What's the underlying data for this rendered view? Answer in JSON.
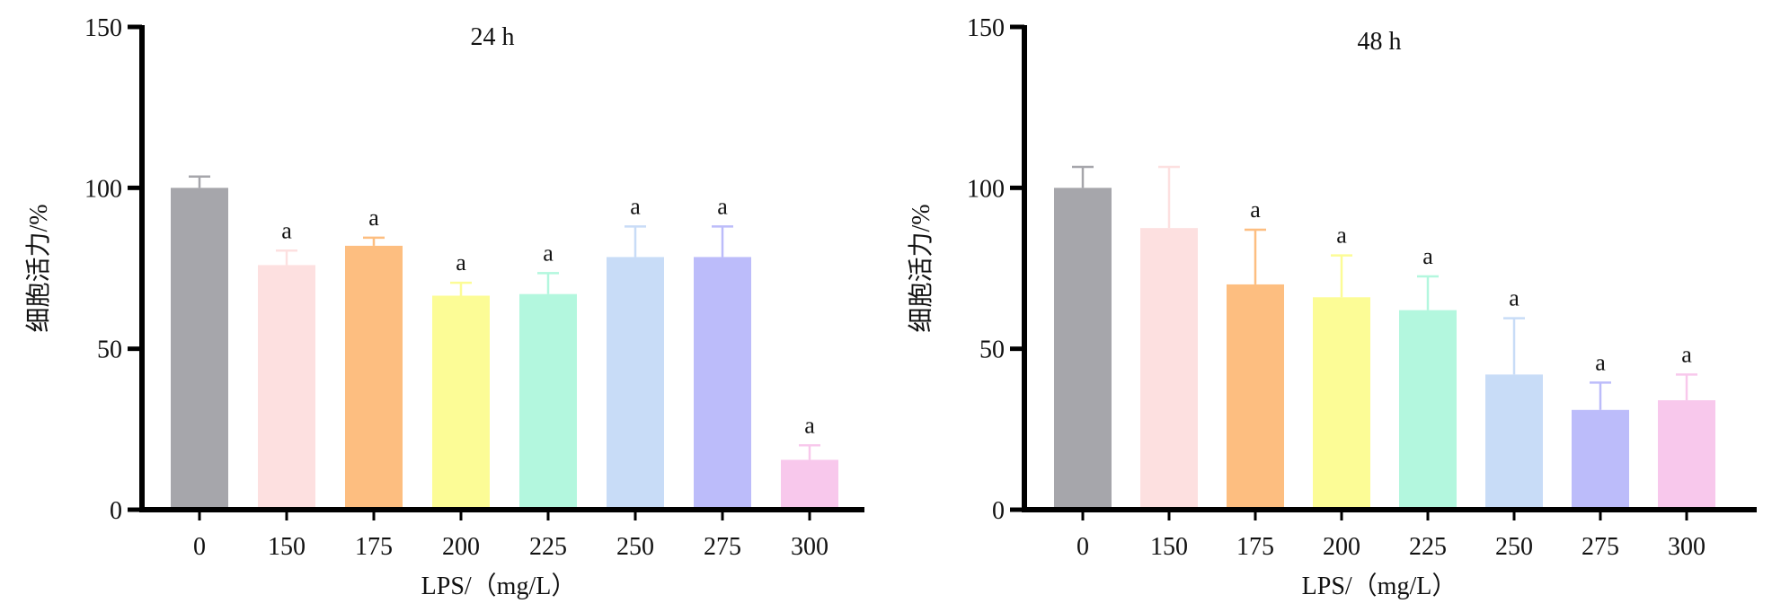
{
  "chart_data": [
    {
      "type": "bar",
      "title": "24 h",
      "xlabel": "LPS/（mg/L）",
      "ylabel": "细胞活力/%",
      "ylim": [
        0,
        150
      ],
      "yticks": [
        0,
        50,
        100,
        150
      ],
      "categories": [
        "0",
        "150",
        "175",
        "200",
        "225",
        "250",
        "275",
        "300"
      ],
      "values": [
        100,
        76,
        82,
        66.5,
        67,
        78.5,
        78.5,
        15.5
      ],
      "error": [
        3.5,
        4.5,
        2.5,
        4,
        6.5,
        9.5,
        9.5,
        4.5
      ],
      "significance": [
        "",
        "a",
        "a",
        "a",
        "a",
        "a",
        "a",
        "a"
      ],
      "colors": [
        "#a6a6ab",
        "#fde0e0",
        "#fdbe80",
        "#fcfc96",
        "#b3f7de",
        "#c8dcf7",
        "#bcbcfa",
        "#f8c8ec"
      ],
      "grid": false
    },
    {
      "type": "bar",
      "title": "48 h",
      "xlabel": "LPS/（mg/L）",
      "ylabel": "细胞活力/%",
      "ylim": [
        0,
        150
      ],
      "yticks": [
        0,
        50,
        100,
        150
      ],
      "categories": [
        "0",
        "150",
        "175",
        "200",
        "225",
        "250",
        "275",
        "300"
      ],
      "values": [
        100,
        87.5,
        70,
        66,
        62,
        42,
        31,
        34
      ],
      "error": [
        6.5,
        19,
        17,
        13,
        10.5,
        17.5,
        8.5,
        8
      ],
      "significance": [
        "",
        "",
        "a",
        "a",
        "a",
        "a",
        "a",
        "a"
      ],
      "colors": [
        "#a6a6ab",
        "#fde0e0",
        "#fdbe80",
        "#fcfc96",
        "#b3f7de",
        "#c8dcf7",
        "#bcbcfa",
        "#f8c8ec"
      ],
      "grid": false
    }
  ]
}
